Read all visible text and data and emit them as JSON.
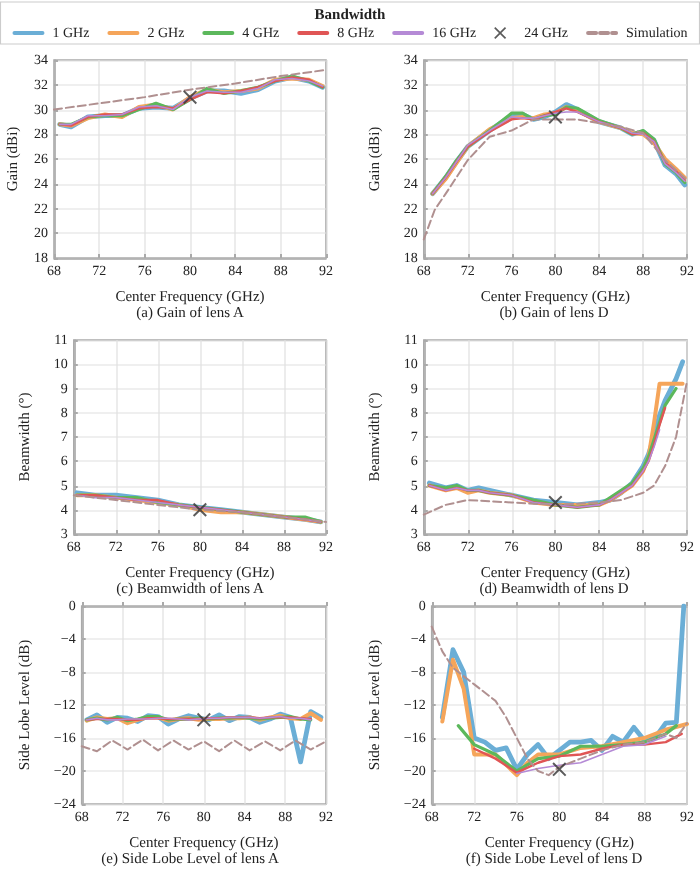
{
  "chart_data": [
    {
      "type": "line",
      "title": "(a) Gain of lens A",
      "xlabel": "Center Frequency (GHz)",
      "ylabel": "Gain (dBi)",
      "legend_title": "Bandwidth",
      "legend": "top",
      "xlim": [
        68,
        92
      ],
      "xticks": [
        68,
        72,
        76,
        80,
        84,
        88,
        92
      ],
      "ylim": [
        18,
        34
      ],
      "yticks": [
        18,
        20,
        22,
        24,
        26,
        28,
        30,
        32,
        34
      ],
      "grid": true,
      "x": [
        68.5,
        69.5,
        71,
        72.5,
        74,
        75.5,
        77,
        78.5,
        80,
        81.5,
        83,
        84.5,
        86,
        87.5,
        89,
        90.5,
        91.7
      ],
      "series": [
        {
          "name": "1 GHz",
          "color": "#6baed6",
          "marker": "none",
          "values": [
            28.8,
            28.6,
            29.4,
            29.5,
            29.5,
            30.1,
            30.2,
            30.1,
            30.9,
            31.5,
            31.5,
            31.3,
            31.6,
            32.3,
            32.6,
            32.3,
            31.8
          ]
        },
        {
          "name": "2 GHz",
          "color": "#f5a55a",
          "marker": "none",
          "values": [
            28.8,
            28.7,
            29.3,
            29.6,
            29.4,
            30.2,
            30.4,
            30.0,
            31.0,
            31.6,
            31.4,
            31.5,
            31.7,
            32.4,
            32.5,
            32.4,
            31.9
          ]
        },
        {
          "name": "4 GHz",
          "color": "#5cb85c",
          "marker": "none",
          "values": [
            28.8,
            28.8,
            29.4,
            29.5,
            29.5,
            30.0,
            30.5,
            30.0,
            30.8,
            31.7,
            31.3,
            31.5,
            31.8,
            32.3,
            32.7,
            32.3,
            31.8
          ]
        },
        {
          "name": "8 GHz",
          "color": "#e05555",
          "marker": "none",
          "values": [
            28.8,
            28.7,
            29.4,
            29.6,
            29.6,
            30.1,
            30.2,
            30.1,
            30.8,
            31.4,
            31.3,
            31.5,
            31.8,
            32.3,
            32.6,
            32.4,
            31.8
          ]
        },
        {
          "name": "16 GHz",
          "color": "#b58ad6",
          "marker": "none",
          "values": [
            28.8,
            28.8,
            29.5,
            29.5,
            29.6,
            30.2,
            30.3,
            30.0,
            31.0,
            31.5,
            31.4,
            31.4,
            31.7,
            32.4,
            32.5,
            32.3,
            31.9
          ]
        },
        {
          "name": "24 GHz",
          "type": "scatter",
          "color": "#333333",
          "marker": "cross",
          "x": [
            80
          ],
          "values": [
            31.0
          ]
        },
        {
          "name": "Simulation",
          "color": "#b09090",
          "marker": "none",
          "line_style": "dashed",
          "x": [
            68,
            72,
            76,
            80,
            84,
            88,
            92
          ],
          "values": [
            30.0,
            30.5,
            31.0,
            31.6,
            32.1,
            32.7,
            33.2
          ]
        }
      ]
    },
    {
      "type": "line",
      "title": "(b) Gain of lens D",
      "xlabel": "Center Frequency (GHz)",
      "ylabel": "Gain (dBi)",
      "xlim": [
        68,
        92
      ],
      "xticks": [
        68,
        72,
        76,
        80,
        84,
        88,
        92
      ],
      "ylim": [
        18,
        34
      ],
      "yticks": [
        18,
        20,
        22,
        24,
        26,
        28,
        30,
        32,
        34
      ],
      "grid": true,
      "x": [
        68.8,
        70,
        71,
        72,
        74,
        76,
        77,
        78,
        79,
        80,
        81,
        82,
        84,
        86,
        87,
        88,
        89,
        90,
        91,
        91.8
      ],
      "series": [
        {
          "color": "#6baed6",
          "marker": "none",
          "values": [
            23.2,
            24.5,
            25.8,
            27.0,
            28.3,
            29.5,
            29.6,
            29.2,
            29.4,
            29.8,
            30.4,
            30.0,
            29.0,
            28.5,
            28.0,
            28.2,
            27.5,
            25.5,
            24.8,
            23.9
          ]
        },
        {
          "color": "#f5a55a",
          "marker": "none",
          "values": [
            23.2,
            24.4,
            25.7,
            27.0,
            28.4,
            29.3,
            29.4,
            29.3,
            29.6,
            29.7,
            30.2,
            29.9,
            29.0,
            28.5,
            28.1,
            28.0,
            27.3,
            26.0,
            25.2,
            24.5
          ]
        },
        {
          "color": "#5cb85c",
          "marker": "none",
          "values": [
            23.2,
            24.6,
            25.9,
            27.0,
            28.3,
            29.7,
            29.7,
            29.2,
            29.5,
            29.6,
            30.2,
            30.1,
            29.1,
            28.5,
            28.0,
            28.3,
            27.6,
            25.6,
            24.9,
            24.1
          ]
        },
        {
          "color": "#e05555",
          "marker": "none",
          "values": [
            23.2,
            24.5,
            25.8,
            27.0,
            28.2,
            29.2,
            29.3,
            29.2,
            29.5,
            29.8,
            30.1,
            29.8,
            29.0,
            28.5,
            28.0,
            28.1,
            27.4,
            25.7,
            25.0,
            24.3
          ]
        },
        {
          "color": "#b58ad6",
          "marker": "none",
          "values": [
            23.2,
            24.5,
            25.8,
            27.1,
            28.3,
            29.4,
            29.3,
            29.3,
            29.5,
            29.7,
            29.8,
            29.8,
            29.0,
            28.5,
            28.1,
            28.0,
            27.4,
            25.6,
            24.9,
            24.2
          ]
        },
        {
          "type": "scatter",
          "color": "#333333",
          "marker": "cross",
          "x": [
            80
          ],
          "values": [
            29.4
          ]
        },
        {
          "color": "#b09090",
          "marker": "none",
          "line_style": "dashed",
          "x": [
            68,
            69,
            70,
            72,
            74,
            76,
            78,
            80,
            82,
            84,
            86,
            88,
            90,
            92
          ],
          "values": [
            19.5,
            21.9,
            23.2,
            25.9,
            27.8,
            28.3,
            29.2,
            29.2,
            29.2,
            28.9,
            28.6,
            28.1,
            25.9,
            24.3
          ]
        }
      ]
    },
    {
      "type": "line",
      "title": "(c) Beamwidth of lens A",
      "xlabel": "Center Frequency (GHz)",
      "ylabel": "Beamwidth (°)",
      "xlim": [
        68,
        92
      ],
      "xticks": [
        68,
        72,
        76,
        80,
        84,
        88,
        92
      ],
      "ylim": [
        3,
        11
      ],
      "yticks": [
        3,
        4,
        5,
        6,
        7,
        8,
        9,
        10,
        11
      ],
      "grid": true,
      "x": [
        68.3,
        70,
        72,
        74,
        76,
        78,
        80,
        82,
        84,
        86,
        88,
        90,
        91.5
      ],
      "series": [
        {
          "color": "#6baed6",
          "marker": "none",
          "values": [
            4.7,
            4.6,
            4.6,
            4.5,
            4.4,
            4.2,
            4.1,
            4.0,
            3.9,
            3.8,
            3.7,
            3.6,
            3.5
          ]
        },
        {
          "color": "#f5a55a",
          "marker": "none",
          "values": [
            4.6,
            4.6,
            4.5,
            4.4,
            4.3,
            4.2,
            4.0,
            3.9,
            3.9,
            3.8,
            3.7,
            3.6,
            3.5
          ]
        },
        {
          "color": "#5cb85c",
          "marker": "none",
          "values": [
            4.6,
            4.6,
            4.5,
            4.5,
            4.3,
            4.2,
            4.1,
            4.0,
            3.9,
            3.8,
            3.7,
            3.7,
            3.5
          ]
        },
        {
          "color": "#e05555",
          "marker": "none",
          "values": [
            4.6,
            4.6,
            4.5,
            4.4,
            4.4,
            4.2,
            4.1,
            4.0,
            3.9,
            3.8,
            3.7,
            3.6,
            3.5
          ]
        },
        {
          "color": "#b58ad6",
          "marker": "none",
          "values": [
            4.6,
            4.5,
            4.5,
            4.4,
            4.3,
            4.2,
            4.1,
            4.0,
            3.9,
            3.8,
            3.7,
            3.6,
            3.5
          ]
        },
        {
          "type": "scatter",
          "color": "#333333",
          "marker": "cross",
          "x": [
            80
          ],
          "values": [
            4.0
          ]
        },
        {
          "color": "#b09090",
          "marker": "none",
          "line_style": "dashed",
          "x": [
            68,
            72,
            76,
            80,
            84,
            88,
            92
          ],
          "values": [
            4.6,
            4.4,
            4.2,
            4.0,
            3.9,
            3.7,
            3.5
          ]
        }
      ]
    },
    {
      "type": "line",
      "title": "(d) Beamwidth of lens D",
      "xlabel": "Center Frequency (GHz)",
      "ylabel": "Beamwidth (°)",
      "xlim": [
        68,
        92
      ],
      "xticks": [
        68,
        72,
        76,
        80,
        84,
        88,
        92
      ],
      "ylim": [
        3,
        11
      ],
      "yticks": [
        3,
        4,
        5,
        6,
        7,
        8,
        9,
        10,
        11
      ],
      "grid": true,
      "x": [
        68.5,
        70,
        71,
        72,
        73,
        74,
        76,
        78,
        80,
        82,
        84,
        85,
        86,
        87,
        88,
        88.5,
        89,
        89.5,
        90,
        91,
        91.6
      ],
      "series": [
        {
          "color": "#6baed6",
          "marker": "none",
          "values": [
            5.1,
            4.9,
            5.0,
            4.8,
            4.9,
            4.8,
            4.6,
            4.4,
            4.3,
            4.2,
            4.3,
            4.4,
            4.7,
            5.1,
            5.8,
            6.3,
            7.0,
            7.9,
            8.5,
            9.4,
            10.1
          ]
        },
        {
          "color": "#f5a55a",
          "marker": "none",
          "values": [
            5.0,
            4.8,
            4.9,
            4.7,
            4.8,
            4.7,
            4.6,
            4.3,
            4.2,
            4.2,
            4.2,
            4.4,
            4.7,
            5.0,
            5.6,
            6.2,
            7.6,
            9.2,
            9.2,
            9.2,
            9.2
          ]
        },
        {
          "color": "#5cb85c",
          "marker": "none",
          "values": [
            5.0,
            4.9,
            5.0,
            4.8,
            4.8,
            4.7,
            4.6,
            4.4,
            4.2,
            4.1,
            4.2,
            4.5,
            4.8,
            5.1,
            5.7,
            6.2,
            6.9,
            7.6,
            8.3,
            9.0,
            null
          ]
        },
        {
          "color": "#e05555",
          "marker": "none",
          "values": [
            5.0,
            4.8,
            4.9,
            4.8,
            4.8,
            4.7,
            4.6,
            4.3,
            4.2,
            4.1,
            4.2,
            4.4,
            4.7,
            5.0,
            5.6,
            6.0,
            6.7,
            7.5,
            8.2,
            null,
            null
          ]
        },
        {
          "color": "#b58ad6",
          "marker": "none",
          "values": [
            5.0,
            4.8,
            4.9,
            4.8,
            4.8,
            4.7,
            4.6,
            4.3,
            4.2,
            4.1,
            4.2,
            4.4,
            4.7,
            5.0,
            5.6,
            6.0,
            6.6,
            7.3,
            null,
            null,
            null
          ]
        },
        {
          "type": "scatter",
          "color": "#333333",
          "marker": "cross",
          "x": [
            80
          ],
          "values": [
            4.3
          ]
        },
        {
          "color": "#b09090",
          "marker": "none",
          "line_style": "dashed",
          "x": [
            68,
            70,
            72,
            76,
            80,
            84,
            86,
            88,
            89,
            90,
            91,
            92
          ],
          "values": [
            3.8,
            4.2,
            4.4,
            4.3,
            4.2,
            4.3,
            4.4,
            4.7,
            5.0,
            5.8,
            7.0,
            9.3
          ]
        }
      ]
    },
    {
      "type": "line",
      "title": "(e) Side Lobe Level of lens A",
      "xlabel": "Center Frequency (GHz)",
      "ylabel": "Side Lobe Level (dB)",
      "xlim": [
        68,
        92
      ],
      "xticks": [
        68,
        72,
        76,
        80,
        84,
        88,
        92
      ],
      "ylim": [
        -24,
        0
      ],
      "yticks": [
        -24,
        -20,
        -16,
        -12,
        -8,
        -4,
        0
      ],
      "grid": true,
      "x": [
        68.5,
        69.5,
        70.5,
        71.5,
        72.5,
        73.5,
        74.5,
        75.5,
        76.5,
        77.5,
        78.5,
        79.5,
        80.5,
        81.5,
        82.5,
        83.5,
        84.5,
        85.5,
        86.5,
        87.5,
        88.5,
        89.5,
        90.5,
        91.5
      ],
      "series": [
        {
          "color": "#6baed6",
          "marker": "none",
          "values": [
            -13.8,
            -13.2,
            -14.1,
            -13.5,
            -13.6,
            -14.0,
            -13.3,
            -13.4,
            -14.3,
            -13.7,
            -13.3,
            -13.6,
            -13.8,
            -13.2,
            -13.9,
            -13.4,
            -13.5,
            -14.1,
            -13.7,
            -13.1,
            -13.5,
            -18.9,
            -12.8,
            -13.5
          ]
        },
        {
          "color": "#f5a55a",
          "marker": "none",
          "values": [
            -13.9,
            -13.5,
            -13.7,
            -13.6,
            -14.2,
            -13.8,
            -13.5,
            -13.5,
            -13.9,
            -13.7,
            -13.6,
            -13.8,
            -13.7,
            -13.7,
            -13.6,
            -13.6,
            -13.5,
            -13.8,
            -13.5,
            -13.3,
            -13.6,
            -13.7,
            -13.0,
            -13.8
          ]
        },
        {
          "color": "#5cb85c",
          "marker": "none",
          "values": [
            -13.8,
            -13.6,
            -13.8,
            -13.5,
            -13.9,
            -13.7,
            -13.4,
            -13.4,
            -13.8,
            -13.7,
            -13.7,
            -13.6,
            -13.7,
            -13.6,
            -13.6,
            -13.5,
            -13.6,
            -13.7,
            -13.6,
            -13.5,
            -13.4,
            -13.7,
            -13.8,
            null
          ]
        },
        {
          "color": "#e05555",
          "marker": "none",
          "values": [
            -13.8,
            -13.7,
            -13.7,
            -13.7,
            -13.8,
            -13.8,
            -13.6,
            -13.6,
            -13.7,
            -13.7,
            -13.7,
            -13.7,
            -13.6,
            -13.6,
            -13.5,
            -13.5,
            -13.5,
            -13.6,
            -13.5,
            -13.5,
            -13.5,
            -13.6,
            -13.7,
            null
          ]
        },
        {
          "color": "#b58ad6",
          "marker": "none",
          "values": [
            -13.8,
            -13.6,
            -13.8,
            -13.8,
            -13.7,
            -13.7,
            -13.7,
            -13.6,
            -13.6,
            -13.7,
            -13.8,
            -13.7,
            -13.6,
            -13.6,
            -13.5,
            -13.5,
            -13.5,
            -13.6,
            -13.5,
            -13.4,
            -13.6,
            -13.6,
            -13.8,
            null
          ]
        },
        {
          "type": "scatter",
          "color": "#333333",
          "marker": "cross",
          "x": [
            80
          ],
          "values": [
            -13.8
          ]
        },
        {
          "color": "#b09090",
          "marker": "none",
          "line_style": "dashed",
          "x": [
            68,
            69.5,
            71,
            72.5,
            74,
            75.5,
            77,
            78.5,
            80,
            81.5,
            83,
            84.5,
            86,
            87.5,
            89,
            90.5,
            92
          ],
          "values": [
            -17.0,
            -17.6,
            -16.3,
            -17.4,
            -16.2,
            -17.5,
            -16.3,
            -17.4,
            -16.4,
            -17.6,
            -16.3,
            -17.5,
            -16.4,
            -17.5,
            -16.3,
            -17.4,
            -16.4
          ]
        }
      ]
    },
    {
      "type": "line",
      "title": "(f) Side Lobe Level of lens D",
      "xlabel": "Center Frequency (GHz)",
      "ylabel": "Side Lobe Level (dB)",
      "xlim": [
        68,
        92
      ],
      "xticks": [
        68,
        72,
        76,
        80,
        84,
        88,
        92
      ],
      "ylim": [
        -24,
        0
      ],
      "yticks": [
        -24,
        -20,
        -16,
        -12,
        -8,
        -4,
        0
      ],
      "grid": true,
      "series": [
        {
          "color": "#6baed6",
          "marker": "none",
          "x": [
            69,
            70,
            71,
            72,
            73,
            74,
            75,
            76,
            77,
            78,
            79,
            80,
            81,
            82,
            83,
            84,
            85,
            86,
            87,
            88,
            89,
            90,
            91,
            91.7
          ],
          "values": [
            -13.5,
            -5.3,
            -8.0,
            -16.0,
            -16.5,
            -17.5,
            -17.2,
            -19.8,
            -18.0,
            -16.8,
            -18.5,
            -17.5,
            -16.5,
            -16.5,
            -16.3,
            -17.5,
            -15.8,
            -16.5,
            -14.7,
            -16.3,
            -16.0,
            -14.2,
            -14.1,
            0
          ]
        },
        {
          "color": "#f5a55a",
          "marker": "none",
          "x": [
            69,
            70,
            71,
            72,
            74,
            76,
            77,
            78,
            80,
            82,
            84,
            86,
            88,
            90,
            92
          ],
          "values": [
            -14.0,
            -6.5,
            -10.0,
            -18.0,
            -18.0,
            -20.5,
            -19.0,
            -18.0,
            -18.0,
            -17.2,
            -17.0,
            -16.5,
            -16.0,
            -15.0,
            -14.3
          ]
        },
        {
          "color": "#5cb85c",
          "marker": "none",
          "x": [
            70.5,
            72,
            74,
            76,
            78,
            80,
            82,
            84,
            86,
            88,
            90,
            91
          ],
          "values": [
            -14.5,
            -16.8,
            -18.0,
            -20.0,
            -18.5,
            -18.2,
            -17.0,
            -17.0,
            -16.8,
            -16.5,
            -15.5,
            -14.5
          ]
        },
        {
          "color": "#e05555",
          "marker": "none",
          "x": [
            72,
            74,
            76,
            78,
            80,
            82,
            84,
            86,
            88,
            90,
            91.5
          ],
          "values": [
            -17.3,
            -18.5,
            -20.2,
            -19.0,
            -18.2,
            -18.0,
            -17.3,
            -16.8,
            -16.8,
            -16.5,
            -15.5
          ]
        },
        {
          "color": "#b58ad6",
          "marker": "none",
          "x": [
            76,
            78,
            80,
            82,
            84,
            86,
            88,
            90
          ],
          "values": [
            -20.3,
            -19.7,
            -19.3,
            -19.0,
            -18.0,
            -17.0,
            -16.8,
            -15.8
          ]
        },
        {
          "type": "scatter",
          "color": "#333333",
          "marker": "cross",
          "x": [
            80
          ],
          "values": [
            -19.8
          ]
        },
        {
          "color": "#b09090",
          "marker": "none",
          "line_style": "dashed",
          "x": [
            68,
            69,
            70,
            72,
            74,
            75,
            76,
            77,
            78,
            79,
            80,
            82,
            84,
            86,
            88,
            90,
            91,
            92
          ],
          "values": [
            -2.5,
            -5.5,
            -7.5,
            -9.5,
            -11.5,
            -13.5,
            -16.0,
            -18.5,
            -20.0,
            -20.5,
            -19.5,
            -18.5,
            -17.5,
            -16.8,
            -16.5,
            -15.5,
            -16.0,
            -14.2
          ]
        }
      ]
    }
  ]
}
